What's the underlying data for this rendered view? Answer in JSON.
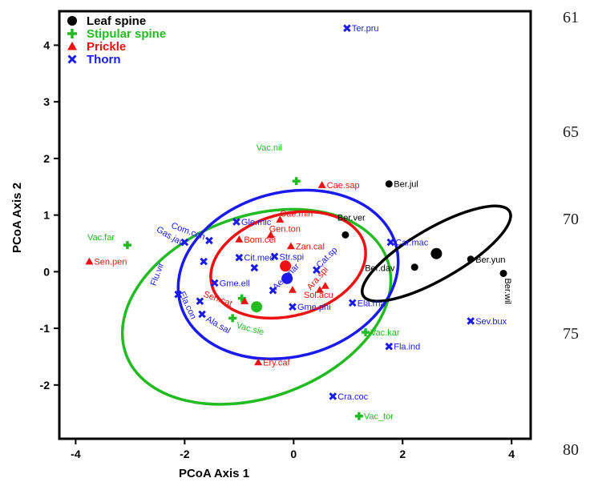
{
  "chart_data": {
    "type": "scatter",
    "title": "",
    "xlabel": "PCoA Axis 1",
    "ylabel": "PCoA Axis 2",
    "xlim": [
      -4.3,
      4.35
    ],
    "ylim": [
      -2.95,
      4.6
    ],
    "xticks": [
      -4,
      -2,
      0,
      2,
      4
    ],
    "yticks": [
      -2,
      -1,
      0,
      1,
      2,
      3,
      4
    ],
    "grid": false,
    "legend_position": "top-left",
    "colors": {
      "leaf": "#000000",
      "stipular": "#22bb22",
      "prickle": "#ee1111",
      "thorn": "#1a1aee"
    },
    "series": [
      {
        "name": "Leaf spine",
        "marker": "circle",
        "color": "#000000",
        "centroid": [
          2.62,
          0.32
        ],
        "ellipse": {
          "cx": 2.62,
          "cy": 0.32,
          "rx": 1.55,
          "ry": 0.45,
          "angle_deg": -30
        },
        "points": [
          {
            "label": "Ber.jul",
            "x": 1.75,
            "y": 1.55
          },
          {
            "label": "Ber.ver",
            "x": 0.95,
            "y": 0.65
          },
          {
            "label": "Ber.dav",
            "x": 2.22,
            "y": 0.08
          },
          {
            "label": "Ber.yun",
            "x": 3.25,
            "y": 0.22
          },
          {
            "label": "Ber.wil",
            "x": 3.85,
            "y": -0.03
          }
        ]
      },
      {
        "name": "Stipular spine",
        "marker": "plus",
        "color": "#22bb22",
        "centroid": [
          -0.68,
          -0.62
        ],
        "ellipse": {
          "cx": -0.68,
          "cy": -0.62,
          "rx": 2.55,
          "ry": 1.6,
          "angle_deg": -20
        },
        "points": [
          {
            "label": "Vac.nil",
            "x": 0.05,
            "y": 1.6
          },
          {
            "label": "Vac.far",
            "x": -3.05,
            "y": 0.47
          },
          {
            "label": "Vac.sie",
            "x": -1.12,
            "y": -0.82
          },
          {
            "label": "Vac.kar",
            "x": 1.32,
            "y": -1.07
          },
          {
            "label": "Vac_tor",
            "x": 1.2,
            "y": -2.55
          },
          {
            "label": "",
            "x": -0.95,
            "y": -0.47
          }
        ]
      },
      {
        "name": "Prickle",
        "marker": "triangle",
        "color": "#ee1111",
        "centroid": [
          -0.15,
          0.1
        ],
        "ellipse": {
          "cx": -0.1,
          "cy": 0.12,
          "rx": 1.45,
          "ry": 0.9,
          "angle_deg": -15
        },
        "points": [
          {
            "label": "Cae.sap",
            "x": 0.52,
            "y": 1.53
          },
          {
            "label": "Cae.min",
            "x": -0.25,
            "y": 0.92
          },
          {
            "label": "Gen.ton",
            "x": -0.42,
            "y": 0.65
          },
          {
            "label": "Bom.cei",
            "x": -1.0,
            "y": 0.57
          },
          {
            "label": "Zan.cal",
            "x": -0.05,
            "y": 0.45
          },
          {
            "label": "Sen.pen",
            "x": -3.75,
            "y": 0.18
          },
          {
            "label": "Ara.spi",
            "x": 0.58,
            "y": -0.25
          },
          {
            "label": "Sol.acu",
            "x": 0.48,
            "y": -0.32
          },
          {
            "label": "Sen.cat",
            "x": -0.9,
            "y": -0.52
          },
          {
            "label": "Ery.caf",
            "x": -0.65,
            "y": -1.6
          },
          {
            "label": "",
            "x": -0.02,
            "y": -0.32
          }
        ]
      },
      {
        "name": "Thorn",
        "marker": "x",
        "color": "#1a1aee",
        "centroid": [
          -0.12,
          -0.12
        ],
        "ellipse": {
          "cx": -0.1,
          "cy": -0.05,
          "rx": 2.05,
          "ry": 1.45,
          "angle_deg": -15
        },
        "points": [
          {
            "label": "Ter.pru",
            "x": 0.98,
            "y": 4.3
          },
          {
            "label": "Gle.mic",
            "x": -1.05,
            "y": 0.88
          },
          {
            "label": "Car.mac",
            "x": 1.78,
            "y": 0.52
          },
          {
            "label": "Gas.jav",
            "x": -2.0,
            "y": 0.52
          },
          {
            "label": "Com.con",
            "x": -1.55,
            "y": 0.55
          },
          {
            "label": "Cit.med",
            "x": -1.0,
            "y": 0.25
          },
          {
            "label": "Str.spi",
            "x": -0.35,
            "y": 0.27
          },
          {
            "label": "",
            "x": -1.65,
            "y": 0.18
          },
          {
            "label": "Cat.sp",
            "x": 0.42,
            "y": 0.03
          },
          {
            "label": "Aeg.mar",
            "x": -0.38,
            "y": -0.33
          },
          {
            "label": "",
            "x": -0.72,
            "y": 0.07
          },
          {
            "label": "Gme.ell",
            "x": -1.45,
            "y": -0.2
          },
          {
            "label": "Flu.vir",
            "x": -2.12,
            "y": -0.4
          },
          {
            "label": "Ela.con",
            "x": -1.72,
            "y": -0.52
          },
          {
            "label": "Gme.phi",
            "x": -0.02,
            "y": -0.62
          },
          {
            "label": "Ela.rha",
            "x": 1.08,
            "y": -0.55
          },
          {
            "label": "Ala.sal",
            "x": -1.68,
            "y": -0.75
          },
          {
            "label": "Sev.bux",
            "x": 3.25,
            "y": -0.87
          },
          {
            "label": "Fla.ind",
            "x": 1.75,
            "y": -1.32
          },
          {
            "label": "Cra.coc",
            "x": 0.72,
            "y": -2.2
          }
        ]
      }
    ]
  },
  "margin_numbers": [
    "61",
    "65",
    "70",
    "75",
    "80"
  ]
}
